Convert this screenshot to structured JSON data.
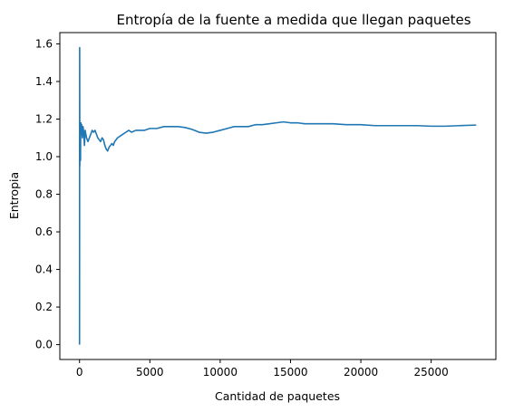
{
  "chart_data": {
    "type": "line",
    "title": "Entropía de la fuente a medida que llegan paquetes",
    "xlabel": "Cantidad de paquetes",
    "ylabel": "Entropia",
    "xlim": [
      -1400,
      29600
    ],
    "ylim": [
      -0.079,
      1.66
    ],
    "xticks": [
      0,
      5000,
      10000,
      15000,
      20000,
      25000
    ],
    "yticks": [
      0.0,
      0.2,
      0.4,
      0.6,
      0.8,
      1.0,
      1.2,
      1.4,
      1.6
    ],
    "grid": false,
    "color": "#1f77b4",
    "series": [
      {
        "x": [
          0,
          10,
          20,
          30,
          40,
          50,
          60,
          70,
          80,
          100,
          120,
          150,
          200,
          250,
          300,
          350,
          400,
          450,
          500,
          600,
          700,
          800,
          900,
          1000,
          1100,
          1200,
          1300,
          1400,
          1500,
          1600,
          1700,
          1800,
          1900,
          2000,
          2100,
          2200,
          2300,
          2400,
          2500,
          2700,
          2900,
          3100,
          3300,
          3500,
          3700,
          4000,
          4300,
          4600,
          5000,
          5500,
          6000,
          6500,
          7000,
          7500,
          8000,
          8500,
          9000,
          9500,
          10000,
          10500,
          11000,
          11500,
          12000,
          12500,
          13000,
          13500,
          14000,
          14500,
          15000,
          15500,
          16000,
          17000,
          18000,
          19000,
          20000,
          21000,
          22000,
          23000,
          24000,
          25000,
          26000,
          27000,
          28200
        ],
        "y": [
          0.0,
          1.58,
          0.95,
          1.05,
          1.15,
          1.0,
          1.18,
          0.98,
          1.12,
          1.18,
          1.15,
          1.17,
          1.1,
          1.16,
          1.13,
          1.06,
          1.14,
          1.12,
          1.1,
          1.08,
          1.1,
          1.12,
          1.14,
          1.13,
          1.14,
          1.12,
          1.1,
          1.09,
          1.08,
          1.1,
          1.09,
          1.06,
          1.04,
          1.03,
          1.05,
          1.06,
          1.07,
          1.06,
          1.08,
          1.1,
          1.11,
          1.12,
          1.13,
          1.14,
          1.13,
          1.14,
          1.14,
          1.14,
          1.15,
          1.15,
          1.16,
          1.16,
          1.16,
          1.155,
          1.145,
          1.13,
          1.125,
          1.13,
          1.14,
          1.15,
          1.16,
          1.16,
          1.16,
          1.17,
          1.17,
          1.175,
          1.18,
          1.185,
          1.18,
          1.18,
          1.175,
          1.175,
          1.175,
          1.17,
          1.17,
          1.165,
          1.165,
          1.165,
          1.165,
          1.162,
          1.162,
          1.165,
          1.168
        ]
      }
    ]
  }
}
